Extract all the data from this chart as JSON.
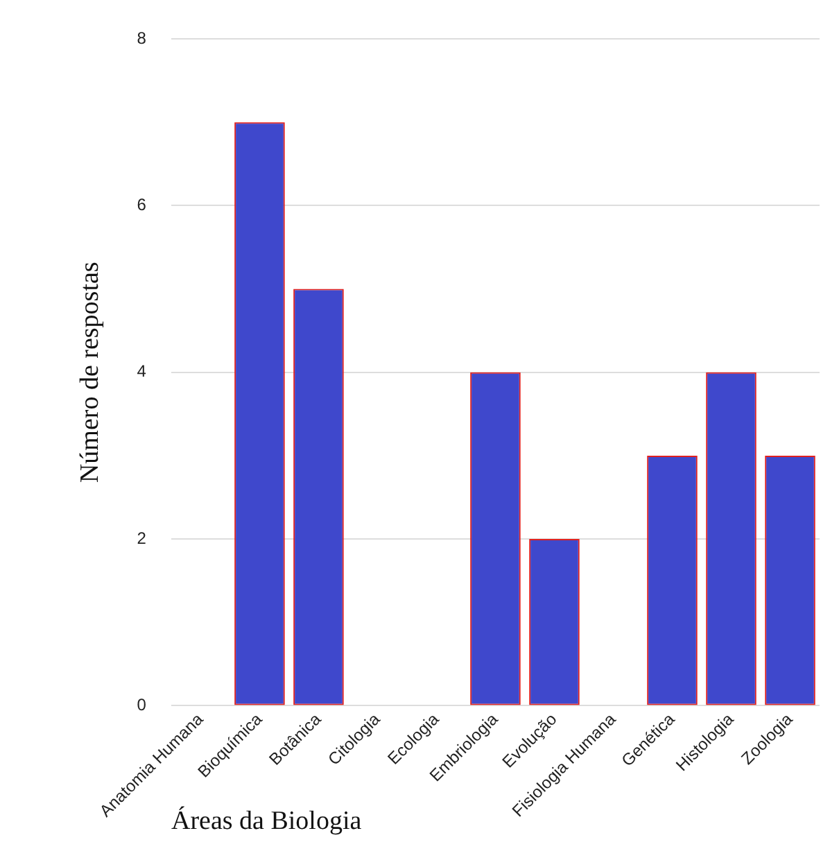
{
  "chart_data": {
    "type": "bar",
    "categories": [
      "Anatomia Humana",
      "Bioquímica",
      "Botânica",
      "Citologia",
      "Ecologia",
      "Embriologia",
      "Evolução",
      "Fisiologia Humana",
      "Genética",
      "Histologia",
      "Zoologia"
    ],
    "values": [
      0,
      7,
      5,
      0,
      0,
      4,
      2,
      0,
      3,
      4,
      3
    ],
    "color": "#3f48cc",
    "xlabel": "Áreas da Biologia",
    "ylabel": "Número de respostas",
    "ylim": [
      0,
      8
    ],
    "yticks": [
      0,
      2,
      4,
      6,
      8
    ],
    "grid": "y",
    "legend": false
  }
}
